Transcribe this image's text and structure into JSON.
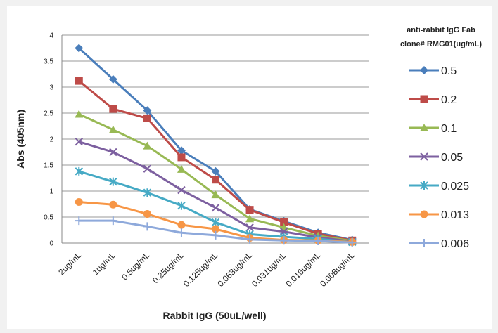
{
  "chart_data": {
    "type": "line",
    "title": "",
    "xlabel": "Rabbit IgG (50uL/well)",
    "ylabel": "Abs (405nm)",
    "ylim": [
      0,
      4
    ],
    "yticks": [
      "0",
      "0.5",
      "1",
      "1.5",
      "2",
      "2.5",
      "3",
      "3.5",
      "4"
    ],
    "categories": [
      "2ug/mL",
      "1ug/mL",
      "0.5ug/mL",
      "0.25ug/mL",
      "0.125ug/mL",
      "0.063ug/mL",
      "0.031ug/mL",
      "0.016ug/mL",
      "0.008ug/mL"
    ],
    "grid": true,
    "legend_title": [
      "anti-rabbit IgG Fab",
      "clone# RMG01(ug/mL)"
    ],
    "legend_position": "right",
    "series": [
      {
        "name": "0.5",
        "color": "#4a7ebb",
        "marker": "diamond",
        "values": [
          3.75,
          3.15,
          2.55,
          1.78,
          1.38,
          0.65,
          0.42,
          0.2,
          0.06
        ]
      },
      {
        "name": "0.2",
        "color": "#be4b48",
        "marker": "square",
        "values": [
          3.12,
          2.58,
          2.4,
          1.65,
          1.22,
          0.64,
          0.4,
          0.18,
          0.05
        ]
      },
      {
        "name": "0.1",
        "color": "#98b954",
        "marker": "triangle",
        "values": [
          2.48,
          2.18,
          1.87,
          1.42,
          0.93,
          0.47,
          0.3,
          0.14,
          0.04
        ]
      },
      {
        "name": "0.05",
        "color": "#7d60a0",
        "marker": "x",
        "values": [
          1.95,
          1.75,
          1.43,
          1.02,
          0.68,
          0.3,
          0.22,
          0.11,
          0.03
        ]
      },
      {
        "name": "0.025",
        "color": "#46aac5",
        "marker": "star",
        "values": [
          1.38,
          1.18,
          0.97,
          0.72,
          0.4,
          0.17,
          0.12,
          0.08,
          0.02
        ]
      },
      {
        "name": "0.013",
        "color": "#f79646",
        "marker": "circle",
        "values": [
          0.79,
          0.74,
          0.56,
          0.35,
          0.27,
          0.1,
          0.06,
          0.05,
          0.02
        ]
      },
      {
        "name": "0.006",
        "color": "#8ea9db",
        "marker": "plus",
        "values": [
          0.43,
          0.43,
          0.32,
          0.2,
          0.15,
          0.07,
          0.05,
          0.04,
          0.01
        ]
      }
    ]
  }
}
